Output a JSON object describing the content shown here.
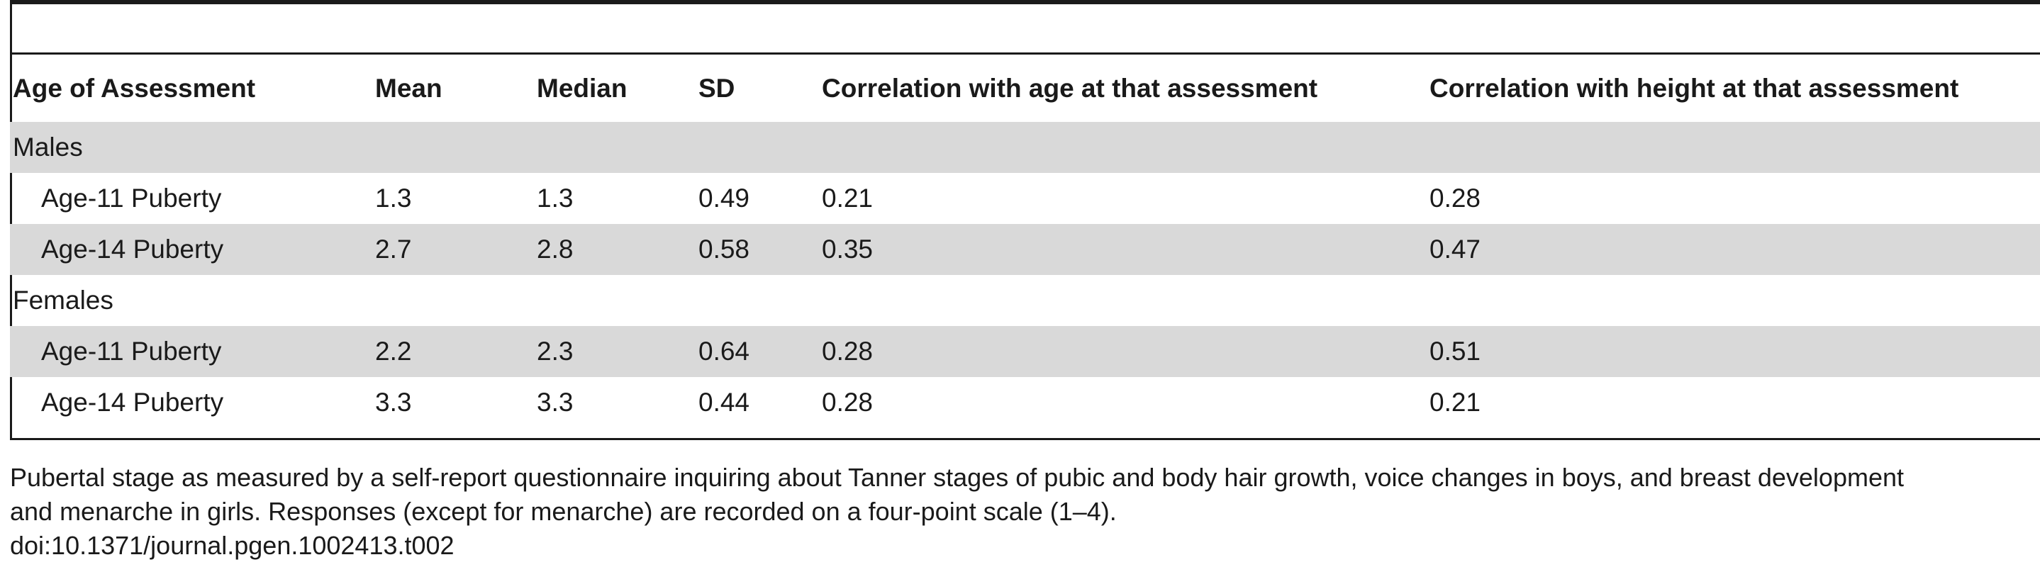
{
  "columns": [
    "Age of Assessment",
    "Mean",
    "Median",
    "SD",
    "Correlation with age at that assessment",
    "Correlation with height at that assessment"
  ],
  "groups": [
    {
      "label": "Males",
      "rows": [
        {
          "label": "Age-11 Puberty",
          "mean": "1.3",
          "median": "1.3",
          "sd": "0.49",
          "corr_age": "0.21",
          "corr_height": "0.28"
        },
        {
          "label": "Age-14 Puberty",
          "mean": "2.7",
          "median": "2.8",
          "sd": "0.58",
          "corr_age": "0.35",
          "corr_height": "0.47"
        }
      ]
    },
    {
      "label": "Females",
      "rows": [
        {
          "label": "Age-11 Puberty",
          "mean": "2.2",
          "median": "2.3",
          "sd": "0.64",
          "corr_age": "0.28",
          "corr_height": "0.51"
        },
        {
          "label": "Age-14 Puberty",
          "mean": "3.3",
          "median": "3.3",
          "sd": "0.44",
          "corr_age": "0.28",
          "corr_height": "0.21"
        }
      ]
    }
  ],
  "footnote": {
    "line1": "Pubertal stage as measured by a self-report questionnaire inquiring about Tanner stages of pubic and body hair growth, voice changes in boys, and breast development",
    "line2": "and menarche in girls. Responses (except for menarche) are recorded on a four-point scale (1–4).",
    "doi": "doi:10.1371/journal.pgen.1002413.t002"
  },
  "colors": {
    "shade": "#d9d9d9",
    "rule": "#1a1a1a",
    "text": "#1a1a1a"
  }
}
